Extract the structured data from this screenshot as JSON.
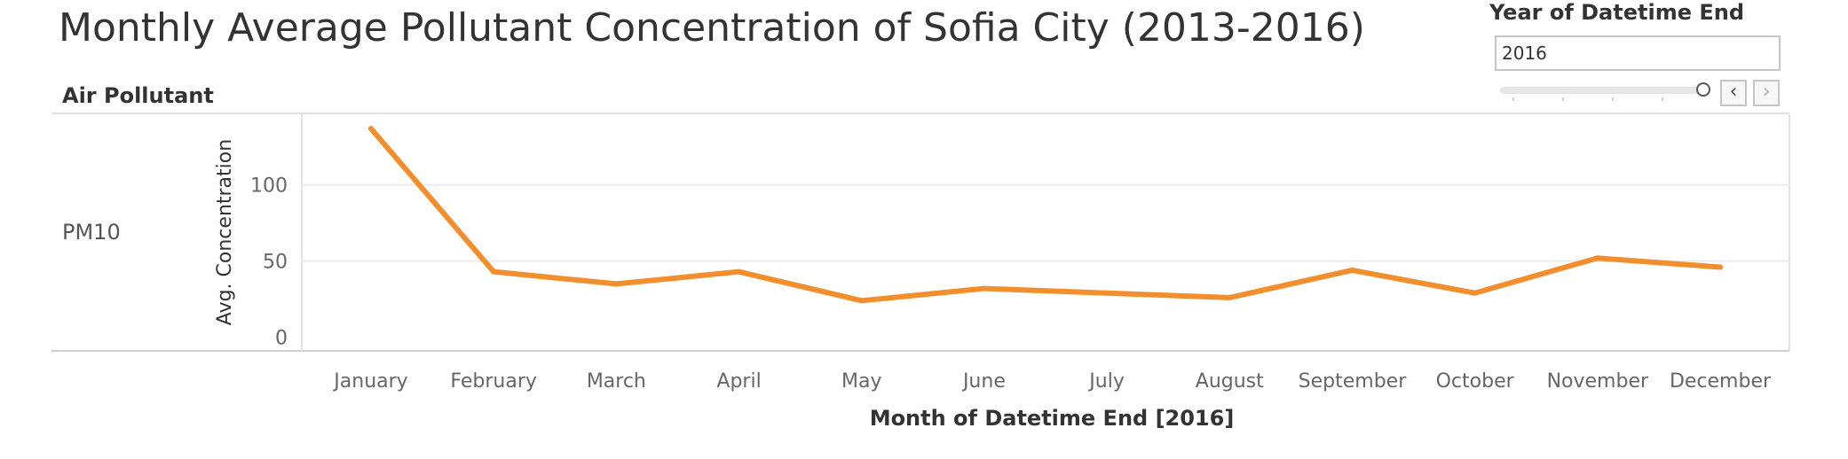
{
  "title": "Monthly Average Pollutant Concentration of Sofia City (2013-2016)",
  "filter": {
    "label": "Year of Datetime End",
    "value": "2016",
    "prev_icon": "chevron-left-icon",
    "next_icon": "chevron-right-icon",
    "prev_glyph": "‹",
    "next_glyph": "›"
  },
  "row_header": "Air Pollutant",
  "row_label": "PM10",
  "chart_data": {
    "type": "line",
    "title": "Monthly Average Pollutant Concentration of Sofia City (2013-2016)",
    "xlabel": "Month of Datetime End [2016]",
    "ylabel": "Avg. Concentration",
    "categories": [
      "January",
      "February",
      "March",
      "April",
      "May",
      "June",
      "July",
      "August",
      "September",
      "October",
      "November",
      "December"
    ],
    "series": [
      {
        "values": [
          137,
          43,
          35,
          43,
          24,
          32,
          29,
          26,
          44,
          29,
          52,
          46
        ],
        "color": "#F28E2B"
      }
    ],
    "yticks": [
      0,
      50,
      100
    ],
    "ylim": [
      -9,
      147
    ],
    "grid": true,
    "legend": "none"
  }
}
